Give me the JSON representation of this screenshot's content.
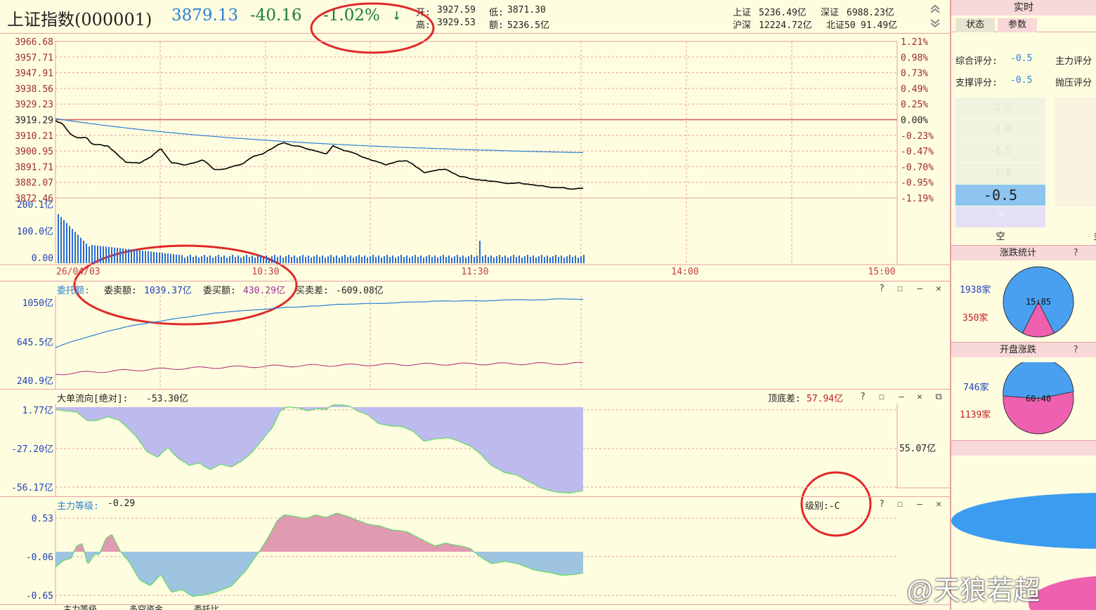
{
  "header": {
    "title": "上证指数(000001)",
    "price": "3879.13",
    "change": "-40.16",
    "change_pct": "-1.02%",
    "down_arrow": "↓",
    "open_label": "开:",
    "open": "3927.59",
    "low_label": "低:",
    "low": "3871.30",
    "high_label": "高:",
    "high": "3929.53",
    "amount_label": "额:",
    "amount": "5236.5亿",
    "idx1_label": "上证",
    "idx1": "5236.49亿",
    "idx2_label": "深证",
    "idx2": "6988.23亿",
    "idx3_label": "沪深",
    "idx3": "12224.72亿",
    "idx4_label": "北证50",
    "idx4": "91.49亿"
  },
  "price_chart": {
    "y_left": [
      "3966.68",
      "3957.71",
      "3947.91",
      "3938.56",
      "3929.23",
      "3919.29",
      "3910.21",
      "3900.95",
      "3891.71",
      "3882.07",
      "3872.46"
    ],
    "y_right": [
      "1.21%",
      "0.98%",
      "0.73%",
      "0.49%",
      "0.25%",
      "0.00%",
      "-0.23%",
      "-0.47%",
      "-0.70%",
      "-0.95%",
      "-1.19%"
    ],
    "vol_labels": [
      "200.1亿",
      "100.0亿",
      "0.00"
    ],
    "time_labels": [
      "26/04/03",
      "10:30",
      "11:30",
      "14:00",
      "15:00"
    ]
  },
  "order_panel": {
    "title": "委托额:",
    "sell_label": "委卖额:",
    "sell_value": "1039.37亿",
    "buy_label": "委买额:",
    "buy_value": "430.29亿",
    "diff_label": "买卖差:",
    "diff_value": "-609.08亿",
    "y_labels": [
      "1050亿",
      "645.5亿",
      "240.9亿"
    ]
  },
  "bigorder_panel": {
    "title": "大单流向[绝对]:",
    "value": "-53.30亿",
    "top_bottom_label": "顶底差:",
    "top_bottom_value": "57.94亿",
    "right_value": "55.07亿",
    "y_labels": [
      "1.77亿",
      "-27.20亿",
      "-56.17亿"
    ]
  },
  "main_panel": {
    "title": "主力等级:",
    "value": "-0.29",
    "level_label": "级别:-C",
    "y_labels": [
      "0.53",
      "-0.06",
      "-0.65"
    ]
  },
  "bottom_tabs": [
    "主力等级",
    "多空资金",
    "委托比"
  ],
  "right_panel": {
    "header": "实时",
    "tabs": [
      "状态",
      "参数"
    ],
    "score1_label": "综合评分:",
    "score1": "-0.5",
    "score2_label": "主力评分",
    "score3_label": "支撑评分:",
    "score3": "-0.5",
    "score4_label": "抛压评分",
    "gauge_ticks": [
      "-2.5",
      "-2.0",
      "-1.5",
      "-1.0"
    ],
    "gauge_value": "-0.5",
    "gauge_zero": "0",
    "gauge_caption": "空",
    "gauge_caption2": "多",
    "zd_header": "涨跌统计",
    "zd_up": "1938家",
    "zd_down": "350家",
    "zd_ratio": "15:85",
    "kp_header": "开盘涨跌",
    "kp_up": "746家",
    "kp_down": "1139家",
    "kp_ratio": "60:40",
    "help": "?"
  },
  "watermark": "@天狼若超",
  "colors": {
    "price_line": "#000000",
    "avg_line": "#2B7FD6",
    "ref_line": "#E05A5A",
    "sell_line": "#2B7FD6",
    "buy_line": "#C0488A",
    "big_fill": "#BDBBEE",
    "main_pos_fill": "#E09AB2",
    "main_neg_fill": "#9EC4E2",
    "annotation": "#E02828"
  }
}
